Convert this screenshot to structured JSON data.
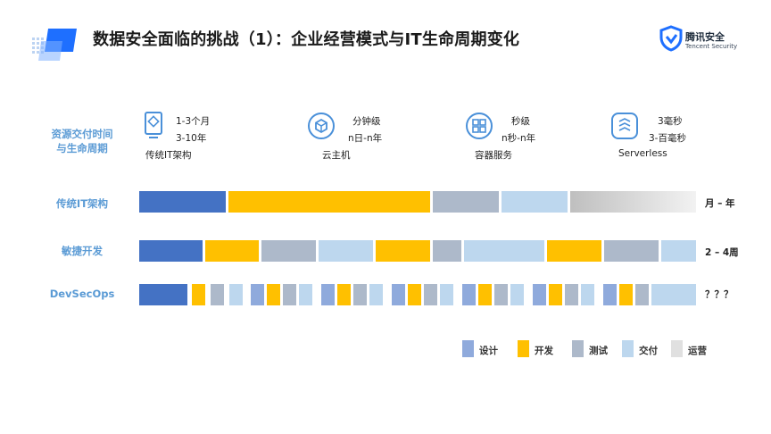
{
  "title": "数据安全面临的挑战（1）：企业经营模式与IT生命周期变化",
  "logo": {
    "name": "腾讯安全",
    "sub": "Tencent Security"
  },
  "colors": {
    "design": "#4472c4",
    "dev": "#ffc000",
    "test": "#adb9ca",
    "deliver": "#bdd7ee",
    "ops": "#d0d0d0",
    "label": "#5b9bd5"
  },
  "row_header": {
    "line1": "资源交付时间",
    "line2": "与生命周期"
  },
  "stages": [
    {
      "icon": "document-icon",
      "time": "1-3个月",
      "life": "3-10年",
      "name": "传统IT架构"
    },
    {
      "icon": "cloud-cube-icon",
      "time": "分钟级",
      "life": "n日-n年",
      "name": "云主机"
    },
    {
      "icon": "container-icon",
      "time": "秒级",
      "life": "n秒-n年",
      "name": "容器服务"
    },
    {
      "icon": "serverless-icon",
      "time": "3毫秒",
      "life": "3-百毫秒",
      "name": "Serverless"
    }
  ],
  "rows": [
    {
      "label": "传统IT架构",
      "period": "月 – 年"
    },
    {
      "label": "敏捷开发",
      "period": "2 – 4周"
    },
    {
      "label": "DevSecOps",
      "period": "？？？"
    }
  ],
  "legend": [
    {
      "label": "设计",
      "key": "design"
    },
    {
      "label": "开发",
      "key": "dev"
    },
    {
      "label": "测试",
      "key": "test"
    },
    {
      "label": "交付",
      "key": "deliver"
    },
    {
      "label": "运营",
      "key": "ops"
    }
  ]
}
